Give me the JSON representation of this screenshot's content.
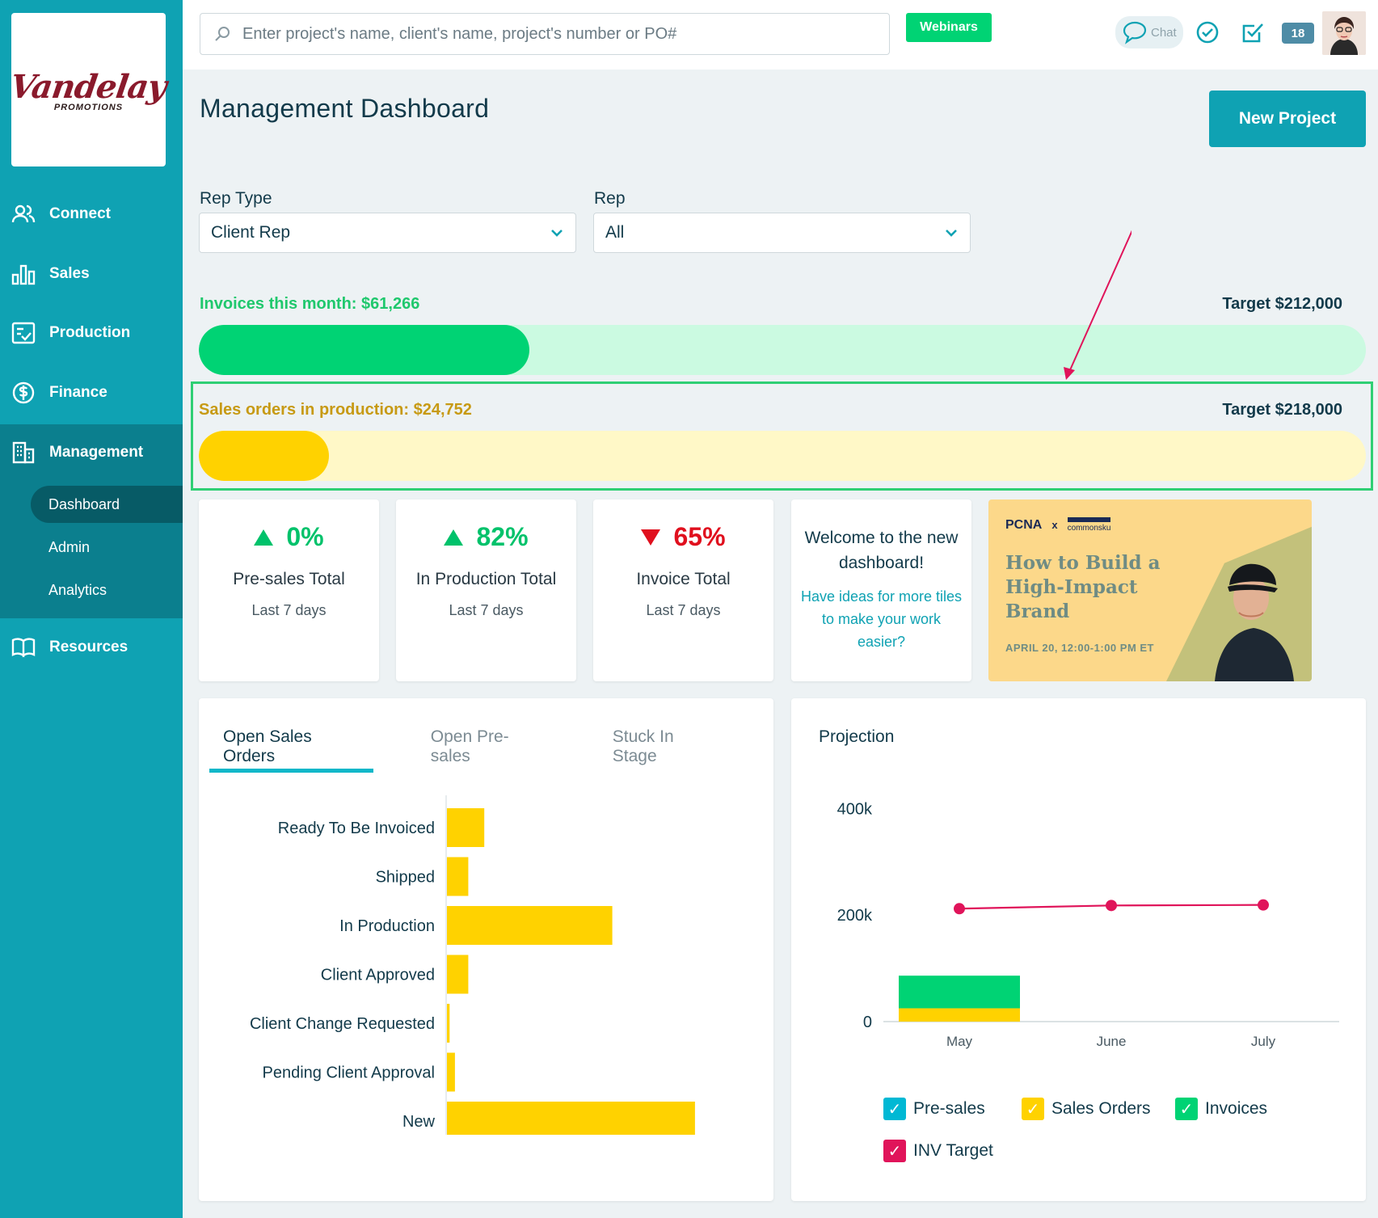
{
  "brand": {
    "name": "Vandelay",
    "sub": "PROMOTIONS"
  },
  "sidebar": {
    "items": [
      {
        "label": "Connect",
        "icon": "people-icon"
      },
      {
        "label": "Sales",
        "icon": "bar-chart-icon"
      },
      {
        "label": "Production",
        "icon": "checklist-icon"
      },
      {
        "label": "Finance",
        "icon": "dollar-circle-icon"
      },
      {
        "label": "Management",
        "icon": "building-icon"
      },
      {
        "label": "Resources",
        "icon": "book-icon"
      }
    ],
    "management_sub": [
      "Dashboard",
      "Admin",
      "Analytics"
    ],
    "active_sub": "Dashboard"
  },
  "header": {
    "search_placeholder": "Enter project's name, client's name, project's number or PO#",
    "webinars": "Webinars",
    "chat": "Chat",
    "badge": "18"
  },
  "page": {
    "title": "Management Dashboard",
    "new_project": "New Project"
  },
  "filters": {
    "rep_type_label": "Rep Type",
    "rep_type_value": "Client Rep",
    "rep_label": "Rep",
    "rep_value": "All"
  },
  "progress": {
    "invoices": {
      "label": "Invoices this month: $61,266",
      "target": "Target $212,000",
      "value": 61266,
      "target_value": 212000,
      "color": "#00d374",
      "track": "#cbfae1",
      "label_color": "#1fc86d"
    },
    "sales_orders": {
      "label": "Sales orders in production: $24,752",
      "target": "Target $218,000",
      "value": 24752,
      "target_value": 218000,
      "color": "#ffd200",
      "track": "#fff8c7",
      "label_color": "#c79a14"
    }
  },
  "stats": [
    {
      "pct": "0%",
      "dir": "up",
      "name": "Pre-sales Total",
      "period": "Last 7 days"
    },
    {
      "pct": "82%",
      "dir": "up",
      "name": "In Production Total",
      "period": "Last 7 days"
    },
    {
      "pct": "65%",
      "dir": "down",
      "name": "Invoice Total",
      "period": "Last 7 days"
    }
  ],
  "welcome": {
    "title": "Welcome to the new dashboard!",
    "link": "Have ideas for more tiles to make your work easier?"
  },
  "promo": {
    "logo_left": "PCNA",
    "logo_x": "x",
    "logo_right": "commonsku",
    "title": "How to Build a High-Impact Brand",
    "date": "APRIL 20, 12:00-1:00 PM ET"
  },
  "orders_panel": {
    "tabs": [
      "Open Sales Orders",
      "Open Pre-sales",
      "Stuck In Stage"
    ],
    "active_tab": 0
  },
  "projection_panel": {
    "title": "Projection"
  },
  "chart_data": [
    {
      "type": "bar",
      "orientation": "horizontal",
      "categories": [
        "Ready To Be Invoiced",
        "Shipped",
        "In Production",
        "Client Approved",
        "Client Change Requested",
        "Pending Client Approval",
        "New"
      ],
      "values": [
        14,
        8,
        62,
        8,
        1,
        3,
        93
      ],
      "color": "#ffd200",
      "xlim": [
        0,
        100
      ]
    },
    {
      "type": "bar",
      "stacked": true,
      "categories": [
        "May",
        "June",
        "July"
      ],
      "yticks": [
        "0",
        "200k",
        "400k"
      ],
      "ylim": [
        0,
        440000
      ],
      "series": [
        {
          "name": "Sales Orders",
          "values": [
            25000,
            0,
            0
          ],
          "color": "#ffd200"
        },
        {
          "name": "Invoices",
          "values": [
            61266,
            0,
            0
          ],
          "color": "#00d374"
        },
        {
          "name": "Pre-sales",
          "values": [
            0,
            0,
            0
          ],
          "color": "#00b8d4"
        }
      ],
      "line": {
        "name": "INV Target",
        "values": [
          212000,
          218000,
          219000
        ],
        "color": "#e0145a"
      },
      "legend": [
        {
          "label": "Pre-sales",
          "color": "#00b8d4"
        },
        {
          "label": "Sales Orders",
          "color": "#ffd200"
        },
        {
          "label": "Invoices",
          "color": "#00d374"
        },
        {
          "label": "INV Target",
          "color": "#e0145a"
        }
      ]
    }
  ]
}
